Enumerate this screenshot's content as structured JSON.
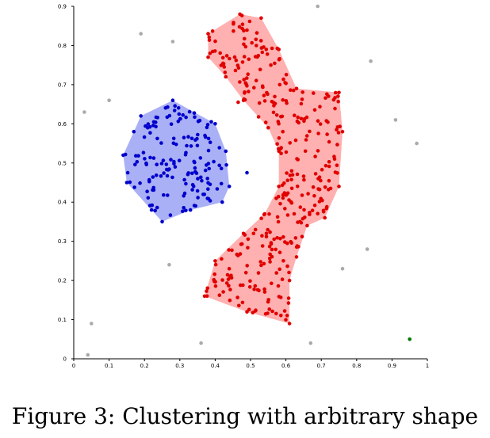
{
  "caption": "Figure 3: Clustering with arbitrary shape",
  "chart_data": {
    "type": "scatter",
    "title": "",
    "xlabel": "",
    "ylabel": "",
    "xlim": [
      0,
      1
    ],
    "ylim": [
      0,
      0.9
    ],
    "xticks": [
      "0",
      "0.1",
      "0.2",
      "0.3",
      "0.4",
      "0.5",
      "0.6",
      "0.7",
      "0.8",
      "0.9",
      "1"
    ],
    "yticks": [
      "0",
      "0.1",
      "0.2",
      "0.3",
      "0.4",
      "0.5",
      "0.6",
      "0.7",
      "0.8",
      "0.9"
    ],
    "grid": false,
    "colors": {
      "blue_cluster": "#0000cc",
      "blue_hull": "#aab0f5",
      "red_cluster": "#e00000",
      "red_hull": "#ffb0b0",
      "noise": "#aaaaaa",
      "green_point": "#007700"
    },
    "hulls": [
      {
        "cluster": "blue",
        "points": [
          [
            0.14,
            0.52
          ],
          [
            0.17,
            0.58
          ],
          [
            0.19,
            0.62
          ],
          [
            0.28,
            0.66
          ],
          [
            0.4,
            0.6
          ],
          [
            0.43,
            0.53
          ],
          [
            0.44,
            0.44
          ],
          [
            0.42,
            0.4
          ],
          [
            0.33,
            0.38
          ],
          [
            0.25,
            0.35
          ],
          [
            0.22,
            0.38
          ],
          [
            0.15,
            0.45
          ]
        ]
      },
      {
        "cluster": "red",
        "points": [
          [
            0.38,
            0.83
          ],
          [
            0.47,
            0.88
          ],
          [
            0.53,
            0.87
          ],
          [
            0.58,
            0.79
          ],
          [
            0.63,
            0.69
          ],
          [
            0.75,
            0.68
          ],
          [
            0.76,
            0.58
          ],
          [
            0.75,
            0.44
          ],
          [
            0.71,
            0.36
          ],
          [
            0.66,
            0.34
          ],
          [
            0.63,
            0.26
          ],
          [
            0.61,
            0.2
          ],
          [
            0.61,
            0.09
          ],
          [
            0.49,
            0.12
          ],
          [
            0.37,
            0.16
          ],
          [
            0.4,
            0.25
          ],
          [
            0.48,
            0.32
          ],
          [
            0.54,
            0.37
          ],
          [
            0.58,
            0.44
          ],
          [
            0.58,
            0.53
          ],
          [
            0.55,
            0.59
          ],
          [
            0.48,
            0.66
          ],
          [
            0.43,
            0.72
          ],
          [
            0.38,
            0.77
          ]
        ]
      }
    ],
    "noise_points": [
      [
        0.03,
        0.63
      ],
      [
        0.1,
        0.66
      ],
      [
        0.19,
        0.83
      ],
      [
        0.28,
        0.81
      ],
      [
        0.69,
        0.9
      ],
      [
        0.84,
        0.76
      ],
      [
        0.91,
        0.61
      ],
      [
        0.97,
        0.55
      ],
      [
        0.27,
        0.24
      ],
      [
        0.83,
        0.28
      ],
      [
        0.76,
        0.23
      ],
      [
        0.05,
        0.09
      ],
      [
        0.04,
        0.01
      ],
      [
        0.36,
        0.04
      ],
      [
        0.67,
        0.04
      ]
    ],
    "green_points": [
      [
        0.95,
        0.05
      ]
    ]
  }
}
